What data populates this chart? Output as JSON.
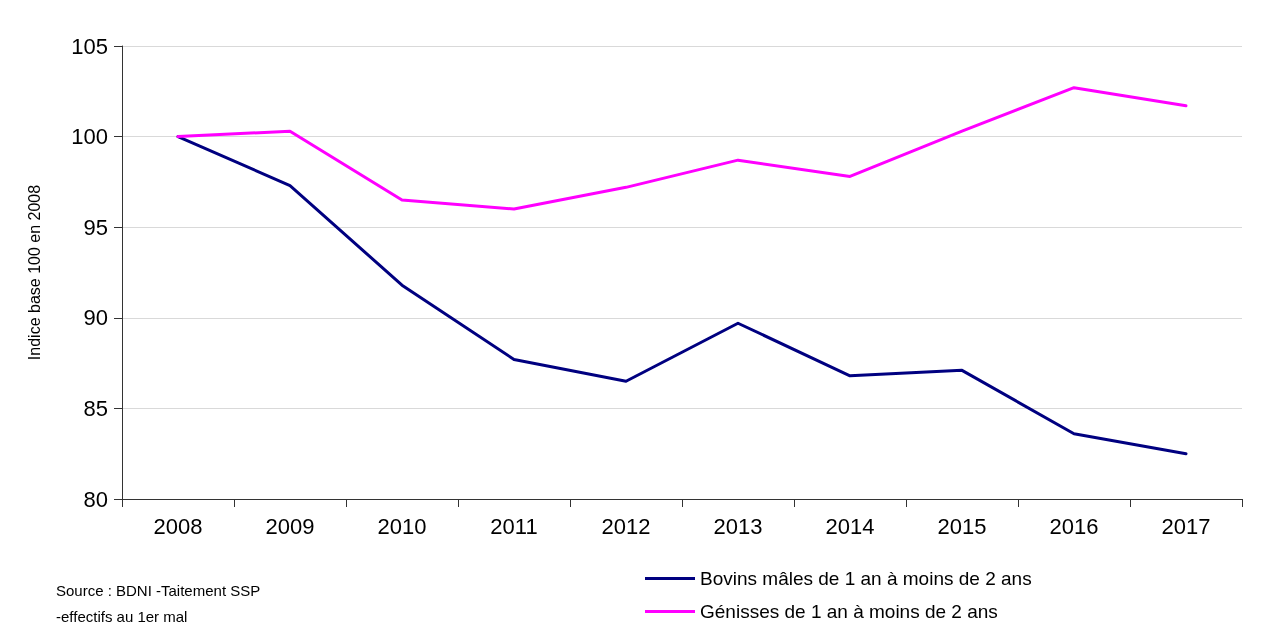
{
  "chart_data": {
    "type": "line",
    "ylabel": "Indice base 100 en 2008",
    "categories": [
      "2008",
      "2009",
      "2010",
      "2011",
      "2012",
      "2013",
      "2014",
      "2015",
      "2016",
      "2017"
    ],
    "series": [
      {
        "name": "Bovins mâles de 1 an à moins de 2 ans",
        "color": "#000080",
        "values": [
          100,
          97.3,
          91.8,
          87.7,
          86.5,
          89.7,
          86.8,
          87.1,
          83.6,
          82.5
        ]
      },
      {
        "name": "Génisses de 1 an à moins de 2 ans",
        "color": "#ff00ff",
        "values": [
          100,
          100.3,
          96.5,
          96.0,
          97.2,
          98.7,
          97.8,
          100.3,
          102.7,
          101.7
        ]
      }
    ],
    "ylim": [
      80,
      105
    ],
    "yticks": [
      80,
      85,
      90,
      95,
      100,
      105
    ],
    "grid": "y",
    "legend": "bottom right",
    "marker": "none",
    "line_style": "solid",
    "annotations": [
      "Source : BDNI -Taitement SSP",
      "-effectifs au 1er mal"
    ]
  }
}
